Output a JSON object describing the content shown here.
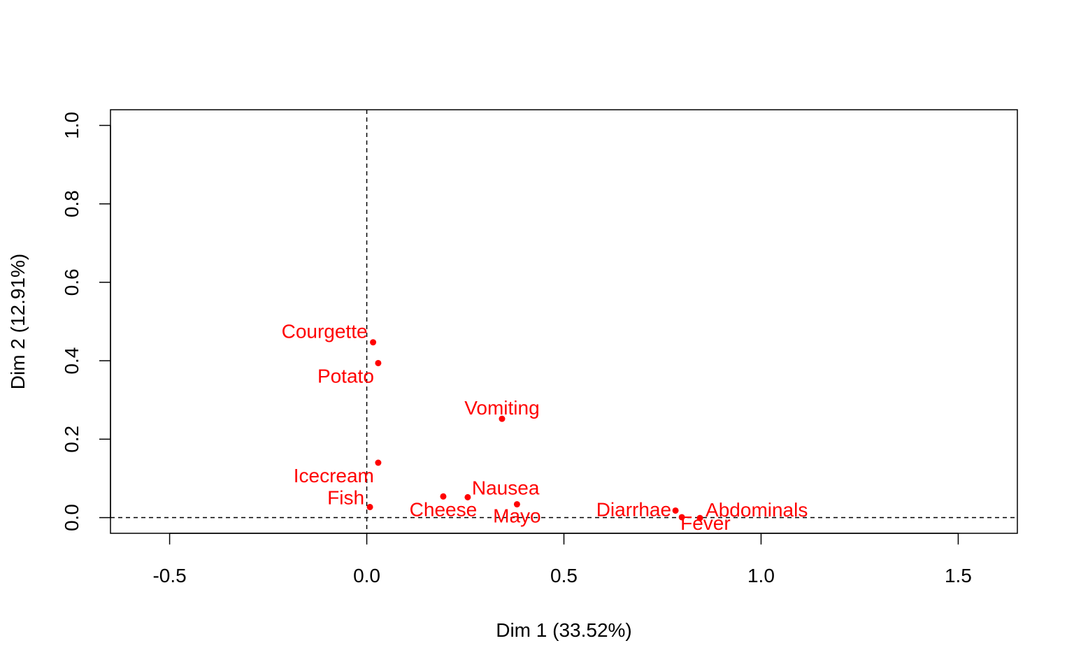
{
  "chart_data": {
    "type": "scatter",
    "title": "",
    "xlabel": "Dim 1 (33.52%)",
    "ylabel": "Dim 2 (12.91%)",
    "xlim": [
      -0.65,
      1.65
    ],
    "ylim": [
      -0.04,
      1.04
    ],
    "x_ticks": [
      -0.5,
      0.0,
      0.5,
      1.0,
      1.5
    ],
    "x_tick_labels": [
      "-0.5",
      "0.0",
      "0.5",
      "1.0",
      "1.5"
    ],
    "y_ticks": [
      0.0,
      0.2,
      0.4,
      0.6,
      0.8,
      1.0
    ],
    "y_tick_labels": [
      "0.0",
      "0.2",
      "0.4",
      "0.6",
      "0.8",
      "1.0"
    ],
    "reference_lines": {
      "x": 0,
      "y": 0,
      "style": "dashed"
    },
    "grid": false,
    "legend": "none",
    "point_color": "#ff0000",
    "points": [
      {
        "label": "Courgette",
        "x": 0.016,
        "y": 0.447
      },
      {
        "label": "Potato",
        "x": 0.029,
        "y": 0.394
      },
      {
        "label": "Vomiting",
        "x": 0.343,
        "y": 0.252
      },
      {
        "label": "Icecream",
        "x": 0.029,
        "y": 0.14
      },
      {
        "label": "Fish",
        "x": 0.008,
        "y": 0.027
      },
      {
        "label": "Cheese",
        "x": 0.194,
        "y": 0.054
      },
      {
        "label": "Nausea",
        "x": 0.256,
        "y": 0.052
      },
      {
        "label": "Mayo",
        "x": 0.381,
        "y": 0.034
      },
      {
        "label": "Diarrhae",
        "x": 0.783,
        "y": 0.018
      },
      {
        "label": "Fever",
        "x": 0.799,
        "y": 0.001
      },
      {
        "label": "Abdominals",
        "x": 0.845,
        "y": -0.001
      }
    ]
  }
}
